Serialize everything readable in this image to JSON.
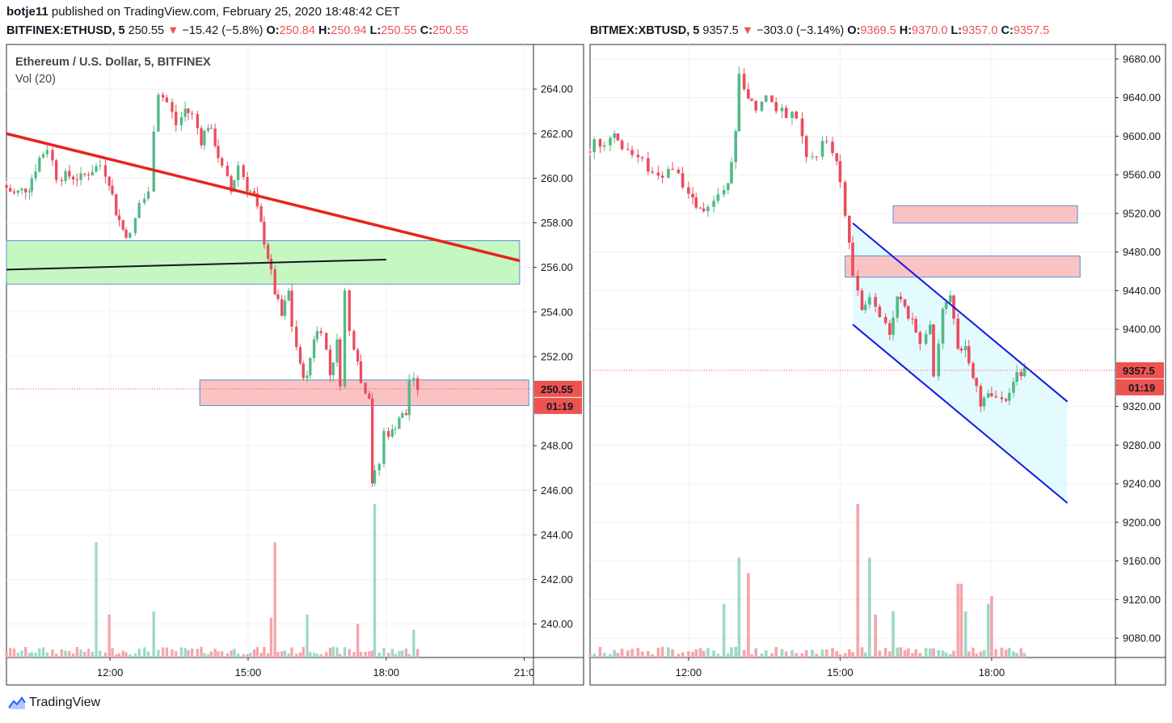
{
  "header": {
    "author": "botje11",
    "text": "published on TradingView.com, February 25, 2020 18:48:42 CET"
  },
  "footer": {
    "brand": "TradingView"
  },
  "panels": [
    {
      "quote": {
        "symbol": "BITFINEX:ETHUSD, 5",
        "last": "250.55",
        "change": "−15.42 (−5.8%)",
        "o": "250.84",
        "h": "250.94",
        "l": "250.55",
        "c": "250.55"
      },
      "title": "Ethereum / U.S. Dollar, 5, BITFINEX",
      "vol_label": "Vol (20)",
      "price_tag": "250.55",
      "timer_tag": "01:19"
    },
    {
      "quote": {
        "symbol": "BITMEX:XBTUSD, 5",
        "last": "9357.5",
        "change": "−303.0 (−3.14%)",
        "o": "9369.5",
        "h": "9370.0",
        "l": "9357.0",
        "c": "9357.5"
      },
      "title": "",
      "vol_label": "",
      "price_tag": "9357.5",
      "timer_tag": "01:19"
    }
  ],
  "chart_data": [
    {
      "type": "candlestick",
      "symbol": "BITFINEX:ETHUSD",
      "interval": "5",
      "y_ticks": [
        "264.00",
        "262.00",
        "260.00",
        "258.00",
        "256.00",
        "254.00",
        "252.00",
        "248.00",
        "246.00",
        "244.00",
        "242.00",
        "240.00"
      ],
      "ylim": [
        238.5,
        266.0
      ],
      "x_ticks": [
        "12:00",
        "15:00",
        "18:00",
        "21:0"
      ],
      "x_tick_hours": [
        12,
        15,
        18,
        21
      ],
      "xlim_hours": [
        9.75,
        21.2
      ],
      "anchors": [
        {
          "t": 9.75,
          "p": 259.7
        },
        {
          "t": 10.0,
          "p": 259.3
        },
        {
          "t": 10.3,
          "p": 259.6
        },
        {
          "t": 10.55,
          "p": 260.9
        },
        {
          "t": 10.75,
          "p": 261.4
        },
        {
          "t": 10.95,
          "p": 260.1
        },
        {
          "t": 11.2,
          "p": 260.1
        },
        {
          "t": 11.45,
          "p": 260.0
        },
        {
          "t": 11.7,
          "p": 260.4
        },
        {
          "t": 11.9,
          "p": 260.6
        },
        {
          "t": 12.05,
          "p": 259.9
        },
        {
          "t": 12.2,
          "p": 258.5
        },
        {
          "t": 12.35,
          "p": 257.7
        },
        {
          "t": 12.55,
          "p": 257.4
        },
        {
          "t": 12.75,
          "p": 258.9
        },
        {
          "t": 12.95,
          "p": 259.3
        },
        {
          "t": 13.05,
          "p": 262.3
        },
        {
          "t": 13.15,
          "p": 263.9
        },
        {
          "t": 13.35,
          "p": 263.4
        },
        {
          "t": 13.55,
          "p": 262.4
        },
        {
          "t": 13.7,
          "p": 263.1
        },
        {
          "t": 13.9,
          "p": 262.8
        },
        {
          "t": 14.05,
          "p": 261.7
        },
        {
          "t": 14.2,
          "p": 262.4
        },
        {
          "t": 14.35,
          "p": 261.6
        },
        {
          "t": 14.55,
          "p": 260.4
        },
        {
          "t": 14.7,
          "p": 259.4
        },
        {
          "t": 14.9,
          "p": 260.6
        },
        {
          "t": 15.05,
          "p": 259.6
        },
        {
          "t": 15.2,
          "p": 259.2
        },
        {
          "t": 15.35,
          "p": 257.9
        },
        {
          "t": 15.5,
          "p": 256.5
        },
        {
          "t": 15.65,
          "p": 254.9
        },
        {
          "t": 15.8,
          "p": 253.8
        },
        {
          "t": 15.95,
          "p": 254.9
        },
        {
          "t": 16.05,
          "p": 253.4
        },
        {
          "t": 16.2,
          "p": 251.5
        },
        {
          "t": 16.35,
          "p": 251.0
        },
        {
          "t": 16.5,
          "p": 252.9
        },
        {
          "t": 16.7,
          "p": 253.3
        },
        {
          "t": 16.85,
          "p": 251.2
        },
        {
          "t": 17.0,
          "p": 252.6
        },
        {
          "t": 17.1,
          "p": 250.9
        },
        {
          "t": 17.2,
          "p": 254.9
        },
        {
          "t": 17.3,
          "p": 253.1
        },
        {
          "t": 17.45,
          "p": 252.0
        },
        {
          "t": 17.55,
          "p": 250.8
        },
        {
          "t": 17.7,
          "p": 250.3
        },
        {
          "t": 17.75,
          "p": 246.4
        },
        {
          "t": 17.85,
          "p": 246.7
        },
        {
          "t": 17.95,
          "p": 247.2
        },
        {
          "t": 18.05,
          "p": 248.6
        },
        {
          "t": 18.2,
          "p": 248.6
        },
        {
          "t": 18.35,
          "p": 249.3
        },
        {
          "t": 18.5,
          "p": 249.4
        },
        {
          "t": 18.6,
          "p": 251.0
        },
        {
          "t": 18.75,
          "p": 250.6
        }
      ],
      "volume_spikes": [
        {
          "t": 11.7,
          "v": 0.75
        },
        {
          "t": 12.0,
          "v": 0.28
        },
        {
          "t": 12.9,
          "v": 0.3
        },
        {
          "t": 15.5,
          "v": 0.26
        },
        {
          "t": 15.6,
          "v": 0.75
        },
        {
          "t": 16.3,
          "v": 0.28
        },
        {
          "t": 17.4,
          "v": 0.22
        },
        {
          "t": 17.75,
          "v": 1.0
        },
        {
          "t": 18.6,
          "v": 0.18
        }
      ],
      "zones": [
        {
          "kind": "support",
          "t0": 9.75,
          "t1": 20.9,
          "p0": 255.25,
          "p1": 257.2
        },
        {
          "kind": "resistance",
          "t0": 13.95,
          "t1": 21.1,
          "p0": 249.8,
          "p1": 250.95
        }
      ],
      "trendlines": [
        {
          "color": "#e8231c",
          "t0": 9.75,
          "p0": 262.0,
          "t1": 20.9,
          "p1": 256.3
        },
        {
          "color": "#131722",
          "t0": 9.75,
          "p0": 255.9,
          "t1": 18.0,
          "p1": 256.35
        }
      ],
      "last_price": 250.55
    },
    {
      "type": "candlestick",
      "symbol": "BITMEX:XBTUSD",
      "interval": "5",
      "y_ticks": [
        "9680.00",
        "9640.00",
        "9600.00",
        "9560.00",
        "9520.00",
        "9480.00",
        "9440.00",
        "9400.00",
        "9320.00",
        "9280.00",
        "9240.00",
        "9200.00",
        "9160.00",
        "9120.00",
        "9080.00"
      ],
      "ylim": [
        9060,
        9695
      ],
      "x_ticks": [
        "12:00",
        "15:00",
        "18:00"
      ],
      "x_tick_hours": [
        12,
        15,
        18
      ],
      "xlim_hours": [
        10.05,
        20.45
      ],
      "anchors": [
        {
          "t": 10.05,
          "p": 9584
        },
        {
          "t": 10.25,
          "p": 9594
        },
        {
          "t": 10.45,
          "p": 9595
        },
        {
          "t": 10.6,
          "p": 9603
        },
        {
          "t": 10.8,
          "p": 9590
        },
        {
          "t": 11.0,
          "p": 9580
        },
        {
          "t": 11.2,
          "p": 9572
        },
        {
          "t": 11.4,
          "p": 9561
        },
        {
          "t": 11.6,
          "p": 9562
        },
        {
          "t": 11.8,
          "p": 9568
        },
        {
          "t": 12.0,
          "p": 9549
        },
        {
          "t": 12.15,
          "p": 9531
        },
        {
          "t": 12.3,
          "p": 9522
        },
        {
          "t": 12.5,
          "p": 9525
        },
        {
          "t": 12.7,
          "p": 9538
        },
        {
          "t": 12.85,
          "p": 9548
        },
        {
          "t": 13.0,
          "p": 9600
        },
        {
          "t": 13.1,
          "p": 9660
        },
        {
          "t": 13.25,
          "p": 9640
        },
        {
          "t": 13.45,
          "p": 9630
        },
        {
          "t": 13.65,
          "p": 9640
        },
        {
          "t": 13.85,
          "p": 9630
        },
        {
          "t": 14.05,
          "p": 9624
        },
        {
          "t": 14.25,
          "p": 9620
        },
        {
          "t": 14.45,
          "p": 9582
        },
        {
          "t": 14.65,
          "p": 9581
        },
        {
          "t": 14.85,
          "p": 9598
        },
        {
          "t": 15.0,
          "p": 9570
        },
        {
          "t": 15.1,
          "p": 9550
        },
        {
          "t": 15.25,
          "p": 9490
        },
        {
          "t": 15.35,
          "p": 9455
        },
        {
          "t": 15.5,
          "p": 9420
        },
        {
          "t": 15.7,
          "p": 9435
        },
        {
          "t": 15.9,
          "p": 9410
        },
        {
          "t": 16.05,
          "p": 9395
        },
        {
          "t": 16.2,
          "p": 9430
        },
        {
          "t": 16.35,
          "p": 9428
        },
        {
          "t": 16.5,
          "p": 9405
        },
        {
          "t": 16.7,
          "p": 9390
        },
        {
          "t": 16.85,
          "p": 9410
        },
        {
          "t": 16.95,
          "p": 9350
        },
        {
          "t": 17.1,
          "p": 9420
        },
        {
          "t": 17.25,
          "p": 9440
        },
        {
          "t": 17.4,
          "p": 9375
        },
        {
          "t": 17.55,
          "p": 9385
        },
        {
          "t": 17.7,
          "p": 9355
        },
        {
          "t": 17.85,
          "p": 9322
        },
        {
          "t": 18.0,
          "p": 9330
        },
        {
          "t": 18.2,
          "p": 9332
        },
        {
          "t": 18.35,
          "p": 9330
        },
        {
          "t": 18.5,
          "p": 9345
        },
        {
          "t": 18.65,
          "p": 9355
        },
        {
          "t": 18.75,
          "p": 9360
        }
      ],
      "volume_spikes": [
        {
          "t": 12.7,
          "v": 0.35
        },
        {
          "t": 13.0,
          "v": 0.65
        },
        {
          "t": 13.15,
          "v": 0.55
        },
        {
          "t": 15.3,
          "v": 1.0
        },
        {
          "t": 15.55,
          "v": 0.65
        },
        {
          "t": 15.65,
          "v": 0.28
        },
        {
          "t": 16.05,
          "v": 0.3
        },
        {
          "t": 17.35,
          "v": 0.48
        },
        {
          "t": 17.45,
          "v": 0.3
        },
        {
          "t": 17.95,
          "v": 0.35
        },
        {
          "t": 18.0,
          "v": 0.4
        },
        {
          "t": 18.7,
          "v": 0.22
        }
      ],
      "zones": [
        {
          "kind": "resistance",
          "t0": 16.05,
          "t1": 19.7,
          "p0": 9510,
          "p1": 9528
        },
        {
          "kind": "resistance",
          "t0": 15.1,
          "t1": 19.75,
          "p0": 9454,
          "p1": 9476
        }
      ],
      "channel": {
        "fill": "#e0fbff",
        "upper": {
          "t0": 15.25,
          "p0": 9510,
          "t1": 19.5,
          "p1": 9325
        },
        "lower": {
          "t0": 15.25,
          "p0": 9405,
          "t1": 19.5,
          "p1": 9220
        }
      },
      "last_price": 9357.5
    }
  ]
}
